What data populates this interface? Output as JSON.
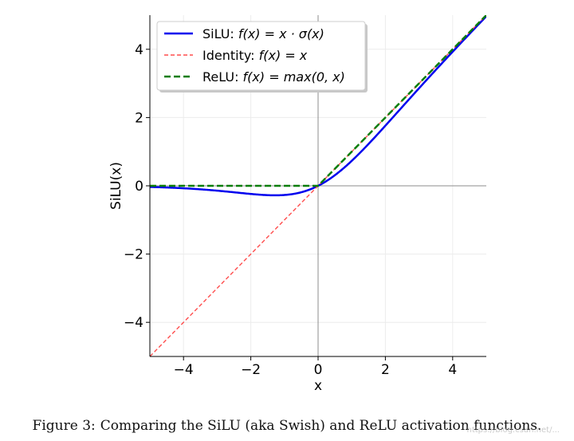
{
  "chart_data": {
    "type": "line",
    "xlabel": "x",
    "ylabel": "SiLU(x)",
    "xlim": [
      -5,
      5
    ],
    "ylim": [
      -5,
      5
    ],
    "xticks": [
      -4,
      -2,
      0,
      2,
      4
    ],
    "yticks": [
      -4,
      -2,
      0,
      2,
      4
    ],
    "xtick_labels": [
      "−4",
      "−2",
      "0",
      "2",
      "4"
    ],
    "ytick_labels": [
      "−4",
      "−2",
      "0",
      "2",
      "4"
    ],
    "grid": true,
    "legend_position": "top-left",
    "series": [
      {
        "name": "SiLU",
        "legend_prefix": "SiLU: ",
        "legend_formula": "f(x) = x · σ(x)",
        "function": "x*sigmoid(x)",
        "color": "#0000ee",
        "style": "solid"
      },
      {
        "name": "Identity",
        "legend_prefix": "Identity: ",
        "legend_formula": "f(x) = x",
        "function": "x",
        "color": "#ff4d4d",
        "style": "dashed"
      },
      {
        "name": "ReLU",
        "legend_prefix": "ReLU: ",
        "legend_formula": "f(x) = max(0, x)",
        "function": "max(0,x)",
        "color": "#0a7d0a",
        "style": "dashed"
      }
    ]
  },
  "caption": {
    "label": "Figure 3:",
    "text": "Comparing the SiLU (aka Swish) and ReLU activation functions."
  },
  "watermark": "https://blog.csdn.net/..."
}
